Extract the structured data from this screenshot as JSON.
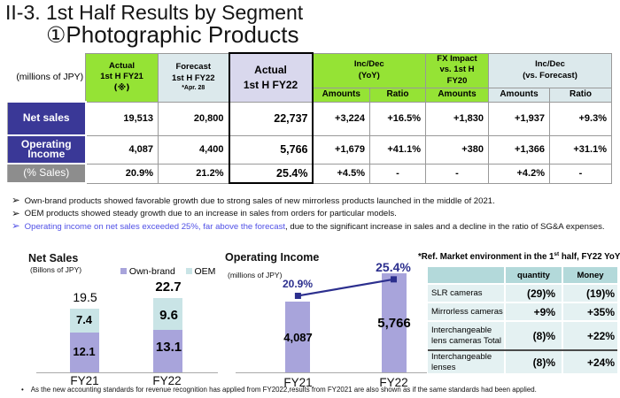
{
  "title": {
    "line1": "II-3. 1st Half Results by Segment",
    "line2_circle": "①",
    "line2": "Photographic Products"
  },
  "main_table": {
    "unit_label": "(millions of JPY)",
    "h_fy21": [
      "Actual",
      "1st H FY21",
      "(※)"
    ],
    "h_forecast": [
      "Forecast",
      "1st H FY22"
    ],
    "h_forecast_note": "*Apr. 28",
    "h_fy22": [
      "Actual",
      "1st H FY22"
    ],
    "g_yoy": [
      "Inc/Dec",
      "(YoY)"
    ],
    "g_fx": [
      "FX Impact",
      "vs. 1st H",
      "FY20"
    ],
    "g_vsf": [
      "Inc/Dec",
      "(vs. Forecast)"
    ],
    "sub_amounts": "Amounts",
    "sub_ratio": "Ratio",
    "rows": [
      {
        "label": "Net sales",
        "fy21": "19,513",
        "forecast": "20,800",
        "fy22": "22,737",
        "yoy_amt": "+3,224",
        "yoy_ratio": "+16.5%",
        "fx_amt": "+1,830",
        "vsf_amt": "+1,937",
        "vsf_ratio": "+9.3%"
      },
      {
        "label": "Operating Income",
        "fy21": "4,087",
        "forecast": "4,400",
        "fy22": "5,766",
        "yoy_amt": "+1,679",
        "yoy_ratio": "+41.1%",
        "fx_amt": "+380",
        "vsf_amt": "+1,366",
        "vsf_ratio": "+31.1%"
      },
      {
        "label": "(% Sales)",
        "fy21": "20.9%",
        "forecast": "21.2%",
        "fy22": "25.4%",
        "yoy_amt": "+4.5%",
        "yoy_ratio": "-",
        "fx_amt": "-",
        "vsf_amt": "+4.2%",
        "vsf_ratio": "-"
      }
    ]
  },
  "bullets": [
    {
      "arrow": "➢",
      "parts": [
        {
          "text": "Own-brand products showed favorable growth due to strong sales of new mirrorless products launched in the middle of 2021."
        }
      ]
    },
    {
      "arrow": "➢",
      "parts": [
        {
          "text": "OEM products showed steady growth due to an increase in sales from orders for particular models."
        }
      ]
    },
    {
      "arrow": "➢",
      "parts": [
        {
          "text": "Operating income on net sales exceeded 25%, far above the forecast"
        },
        {
          "text": ", due to the significant increase in sales and a decline in the ratio of SG&A expenses."
        }
      ]
    }
  ],
  "chart_data": [
    {
      "type": "stacked-bar",
      "title": "Net Sales",
      "unit_label": "(Billons of JPY)",
      "categories": [
        "FY21",
        "FY22"
      ],
      "series": [
        {
          "name": "Own-brand",
          "values": [
            12.1,
            13.1
          ],
          "color": "#A8A4DB"
        },
        {
          "name": "OEM",
          "values": [
            7.4,
            9.6
          ],
          "color": "#C9E4E6"
        }
      ],
      "totals": [
        19.5,
        22.7
      ],
      "legend": [
        "Own-brand",
        "OEM"
      ]
    },
    {
      "type": "bar",
      "title": "Operating Income",
      "unit_label": "(millions of JPY)",
      "categories": [
        "FY21",
        "FY22"
      ],
      "values": [
        4087,
        5766
      ],
      "value_labels": [
        "4,087",
        "5,766"
      ],
      "bar_color": "#A8A4DB",
      "overlay_line": {
        "values": [
          20.9,
          25.4
        ],
        "labels": [
          "20.9%",
          "25.4%"
        ],
        "color": "#2C2F8E"
      }
    }
  ],
  "ref_table": {
    "title_parts": [
      "*Ref. Market environment in the 1",
      "st",
      " half, FY22 YoY"
    ],
    "col_headers": [
      "quantity",
      "Money"
    ],
    "rows": [
      {
        "label": "SLR cameras",
        "quantity": "(29)%",
        "money": "(19)%"
      },
      {
        "label": "Mirrorless cameras",
        "quantity": "+9%",
        "money": "+35%"
      },
      {
        "label": "Interchangeable lens cameras Total",
        "quantity": "(8)%",
        "money": "+22%"
      },
      {
        "label": "Interchangeable lenses",
        "quantity": "(8)%",
        "money": "+24%"
      }
    ]
  },
  "footnote": {
    "bullet": "•",
    "text": "As the new accounting standards for revenue recognition has applied from FY2022,results from FY2021 are also shown as if the same standards had been applied."
  },
  "colors": {
    "accent_green": "#95E335",
    "accent_lightblue": "#DCE9EC",
    "accent_lavender": "#D9D8ED",
    "navy_header": "#3A3897",
    "gray_header": "#8D8D8D",
    "bar_purple": "#A8A4DB",
    "bar_cyan": "#C9E4E6",
    "line_navy": "#2C2F8E",
    "bullet_blue": "#5050E6",
    "ref_header_teal": "#B3D9DA",
    "ref_row_teal": "#E4F1F2"
  }
}
